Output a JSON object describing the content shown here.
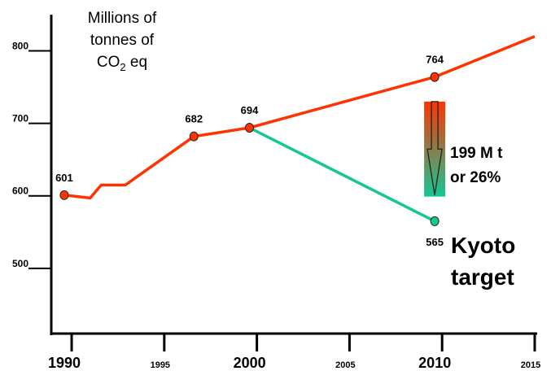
{
  "chart_data": {
    "type": "line",
    "unit_label": [
      "Millions of",
      "tonnes of",
      "CO",
      "2",
      " eq"
    ],
    "ylim": [
      410,
      850
    ],
    "xlim": [
      1988.9,
      2015
    ],
    "y_ticks": [
      {
        "value": 500,
        "label": "500"
      },
      {
        "value": 600,
        "label": "600"
      },
      {
        "value": 700,
        "label": "700"
      },
      {
        "value": 800,
        "label": "800"
      }
    ],
    "x_ticks": [
      {
        "value": 1990,
        "label": "1990",
        "major": true
      },
      {
        "value": 1995,
        "label": "1995",
        "major": false
      },
      {
        "value": 2000,
        "label": "2000",
        "major": true
      },
      {
        "value": 2005,
        "label": "2005",
        "major": false
      },
      {
        "value": 2010,
        "label": "2010",
        "major": true
      },
      {
        "value": 2015,
        "label": "2015",
        "major": false
      }
    ],
    "series": [
      {
        "color": "#ff3300",
        "points": [
          {
            "x": 1989.6,
            "y": 601
          },
          {
            "x": 1991.0,
            "y": 597
          },
          {
            "x": 1991.6,
            "y": 615
          },
          {
            "x": 1992.9,
            "y": 615
          },
          {
            "x": 1996.6,
            "y": 682
          },
          {
            "x": 1999.6,
            "y": 694
          },
          {
            "x": 2009.6,
            "y": 764
          },
          {
            "x": 2015.0,
            "y": 820
          }
        ]
      },
      {
        "color": "#14c896",
        "points": [
          {
            "x": 1999.6,
            "y": 694
          },
          {
            "x": 2009.6,
            "y": 565
          }
        ]
      }
    ],
    "markers": [
      {
        "x": 1989.6,
        "y": 601,
        "label": "601",
        "color": "#ff3300"
      },
      {
        "x": 1996.6,
        "y": 682,
        "label": "682",
        "color": "#ff3300"
      },
      {
        "x": 1999.6,
        "y": 694,
        "label": "694",
        "color": "#ff3300"
      },
      {
        "x": 2009.6,
        "y": 764,
        "label": "764",
        "color": "#ff3300"
      },
      {
        "x": 2009.6,
        "y": 565,
        "label": "565",
        "color": "#14c896"
      }
    ],
    "reduction_arrow": {
      "x": 2009.6,
      "from_y": 730,
      "to_y": 599,
      "color_top": "#ff3300",
      "color_bottom": "#14c896"
    },
    "annotations": {
      "reduction_line1": "199 M t",
      "reduction_line2": "or 26%",
      "target_line1": "Kyoto",
      "target_line2": "target"
    }
  }
}
